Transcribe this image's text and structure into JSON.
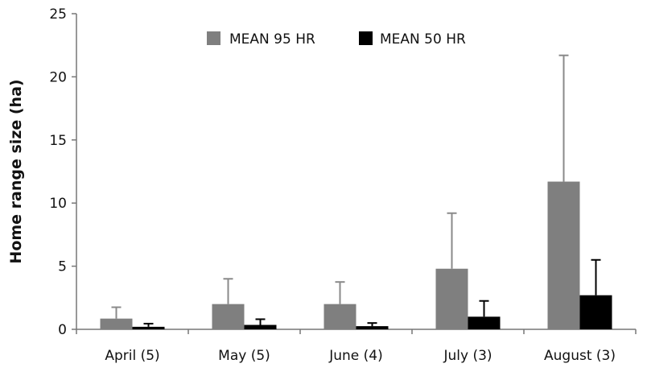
{
  "chart_data": {
    "type": "bar",
    "title": "",
    "xlabel": "",
    "ylabel": "Home range size (ha)",
    "ylim": [
      0,
      25
    ],
    "yticks": [
      0,
      5,
      10,
      15,
      20,
      25
    ],
    "categories": [
      "April (5)",
      "May (5)",
      "June (4)",
      "July (3)",
      "August (3)"
    ],
    "series": [
      {
        "name": "MEAN 95 HR",
        "color": "#7f7f7f",
        "values": [
          0.85,
          2.0,
          2.0,
          4.8,
          11.7
        ],
        "error": [
          0.9,
          2.0,
          1.75,
          4.4,
          10.0
        ]
      },
      {
        "name": "MEAN 50 HR",
        "color": "#000000",
        "values": [
          0.2,
          0.35,
          0.25,
          1.0,
          2.7
        ],
        "error": [
          0.25,
          0.45,
          0.25,
          1.25,
          2.8
        ]
      }
    ],
    "legend_position": "top-center",
    "grid": false
  }
}
